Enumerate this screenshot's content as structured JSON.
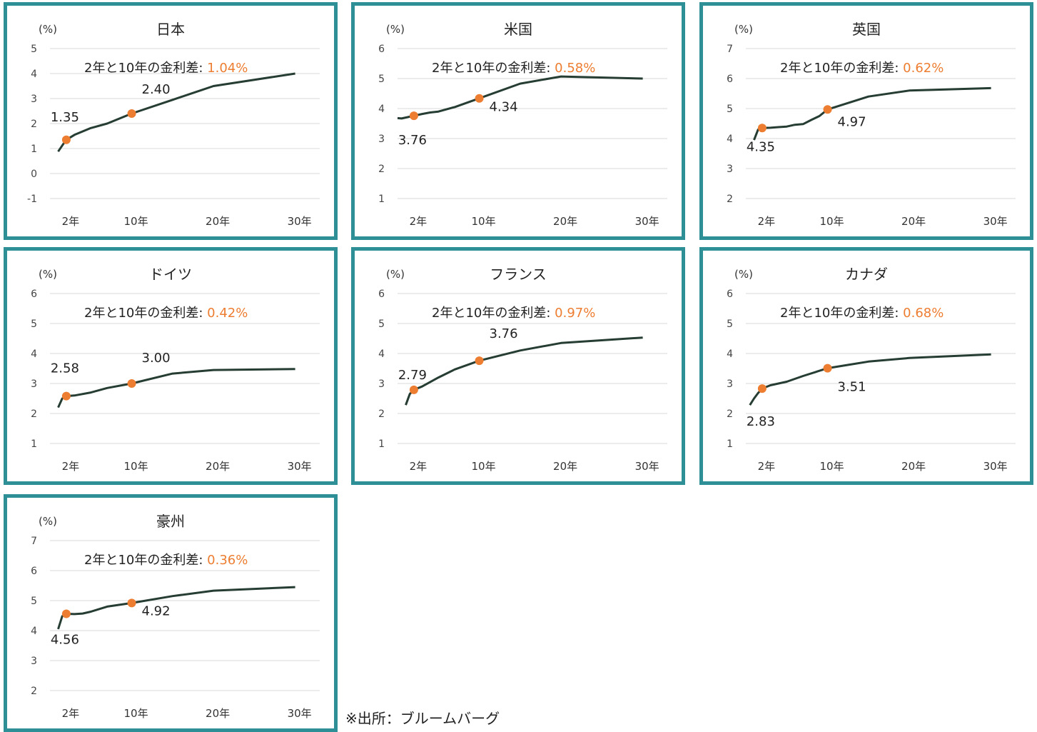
{
  "colors": {
    "border": "#2e8f96",
    "line": "#263d33",
    "marker": "#ed7d31",
    "accent_text": "#ed7d31",
    "grid": "#d9d9d9"
  },
  "unit_label": "(%)",
  "spread_prefix": "2年と10年の金利差: ",
  "x_tick_labels": [
    "2年",
    "10年",
    "20年",
    "30年"
  ],
  "source_note": "※出所：ブルームバーグ",
  "chart_data": [
    {
      "type": "line",
      "title": "日本",
      "ylim": [
        -1,
        5
      ],
      "ticks": [
        -1,
        0,
        1,
        2,
        3,
        4,
        5
      ],
      "spread": "1.04%",
      "x": [
        1,
        1.5,
        2,
        3,
        5,
        7,
        10,
        15,
        20,
        30
      ],
      "values": [
        0.88,
        1.12,
        1.35,
        1.55,
        1.82,
        2.0,
        2.4,
        2.95,
        3.5,
        4.0
      ],
      "marked_points": [
        {
          "x": 2,
          "y": 1.35,
          "label": "1.35"
        },
        {
          "x": 10,
          "y": 2.4,
          "label": "2.40"
        }
      ]
    },
    {
      "type": "line",
      "title": "米国",
      "ylim": [
        1,
        6
      ],
      "ticks": [
        1,
        2,
        3,
        4,
        5,
        6
      ],
      "spread": "0.58%",
      "x": [
        0,
        0.5,
        1,
        2,
        3,
        4,
        5,
        7,
        10,
        15,
        20,
        30
      ],
      "values": [
        3.68,
        3.67,
        3.7,
        3.76,
        3.82,
        3.87,
        3.9,
        4.05,
        4.34,
        4.83,
        5.07,
        5.0
      ],
      "marked_points": [
        {
          "x": 2,
          "y": 3.76,
          "label": "3.76"
        },
        {
          "x": 10,
          "y": 4.34,
          "label": "4.34"
        }
      ]
    },
    {
      "type": "line",
      "title": "英国",
      "ylim": [
        2,
        7
      ],
      "ticks": [
        2,
        3,
        4,
        5,
        6,
        7
      ],
      "spread": "0.62%",
      "x": [
        1,
        1.5,
        2,
        3,
        4,
        5,
        6,
        7,
        8,
        9,
        10,
        15,
        20,
        30
      ],
      "values": [
        3.95,
        4.3,
        4.35,
        4.36,
        4.38,
        4.4,
        4.46,
        4.48,
        4.62,
        4.75,
        4.97,
        5.4,
        5.6,
        5.68
      ],
      "marked_points": [
        {
          "x": 2,
          "y": 4.35,
          "label": "4.35"
        },
        {
          "x": 10,
          "y": 4.97,
          "label": "4.97"
        }
      ]
    },
    {
      "type": "line",
      "title": "ドイツ",
      "ylim": [
        1,
        6
      ],
      "ticks": [
        1,
        2,
        3,
        4,
        5,
        6
      ],
      "spread": "0.42%",
      "x": [
        1,
        1.5,
        2,
        3,
        5,
        7,
        10,
        15,
        20,
        30
      ],
      "values": [
        2.2,
        2.5,
        2.58,
        2.6,
        2.7,
        2.85,
        3.0,
        3.33,
        3.45,
        3.48
      ],
      "marked_points": [
        {
          "x": 2,
          "y": 2.58,
          "label": "2.58"
        },
        {
          "x": 10,
          "y": 3.0,
          "label": "3.00"
        }
      ]
    },
    {
      "type": "line",
      "title": "フランス",
      "ylim": [
        1,
        6
      ],
      "ticks": [
        1,
        2,
        3,
        4,
        5,
        6
      ],
      "spread": "0.97%",
      "x": [
        1,
        1.5,
        2,
        3,
        5,
        7,
        10,
        15,
        20,
        30
      ],
      "values": [
        2.28,
        2.65,
        2.79,
        2.9,
        3.2,
        3.47,
        3.76,
        4.1,
        4.35,
        4.53
      ],
      "marked_points": [
        {
          "x": 2,
          "y": 2.79,
          "label": "2.79"
        },
        {
          "x": 10,
          "y": 3.76,
          "label": "3.76"
        }
      ]
    },
    {
      "type": "line",
      "title": "カナダ",
      "ylim": [
        1,
        6
      ],
      "ticks": [
        1,
        2,
        3,
        4,
        5,
        6
      ],
      "spread": "0.68%",
      "x": [
        0.5,
        1,
        1.5,
        2,
        3,
        5,
        7,
        10,
        15,
        20,
        30
      ],
      "values": [
        2.28,
        2.5,
        2.68,
        2.83,
        2.94,
        3.06,
        3.25,
        3.51,
        3.73,
        3.85,
        3.97
      ],
      "marked_points": [
        {
          "x": 2,
          "y": 2.83,
          "label": "2.83"
        },
        {
          "x": 10,
          "y": 3.51,
          "label": "3.51"
        }
      ]
    },
    {
      "type": "line",
      "title": "豪州",
      "ylim": [
        2,
        7
      ],
      "ticks": [
        2,
        3,
        4,
        5,
        6,
        7
      ],
      "spread": "0.36%",
      "x": [
        1,
        1.5,
        2,
        3,
        4,
        5,
        7,
        10,
        15,
        20,
        30
      ],
      "values": [
        4.05,
        4.48,
        4.56,
        4.55,
        4.57,
        4.63,
        4.8,
        4.92,
        5.15,
        5.33,
        5.45
      ],
      "marked_points": [
        {
          "x": 2,
          "y": 4.56,
          "label": "4.56"
        },
        {
          "x": 10,
          "y": 4.92,
          "label": "4.92"
        }
      ]
    }
  ]
}
